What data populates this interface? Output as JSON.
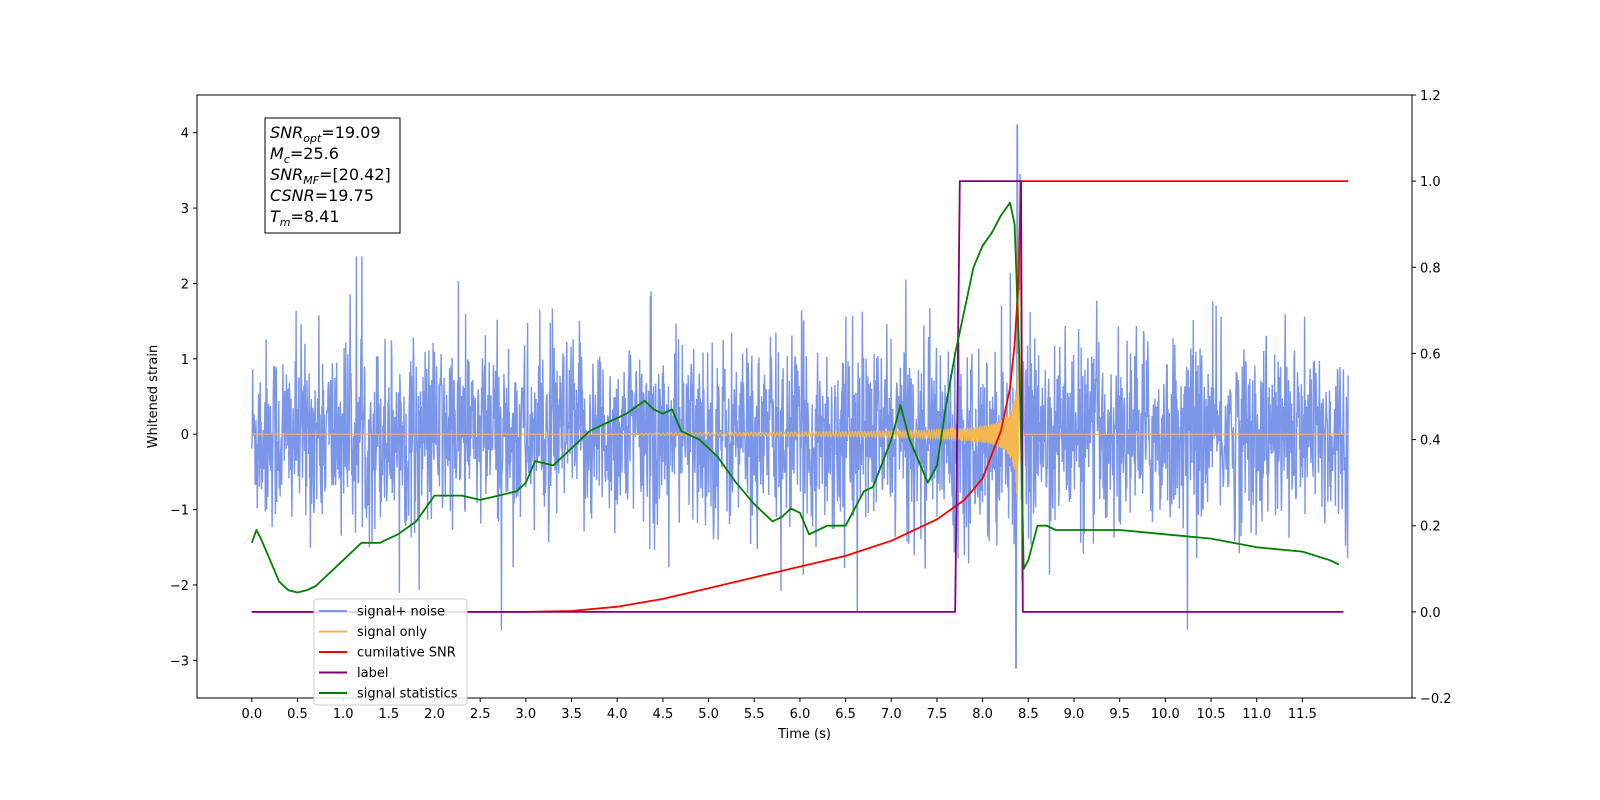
{
  "chart_data": {
    "type": "line",
    "xlabel": "Time (s)",
    "ylabel": "Whitened strain",
    "xlim": [
      -0.6,
      12.7
    ],
    "ylim": [
      -3.5,
      4.5
    ],
    "y2lim": [
      -0.2,
      1.2
    ],
    "x_ticks": [
      0.0,
      0.5,
      1.0,
      1.5,
      2.0,
      2.5,
      3.0,
      3.5,
      4.0,
      4.5,
      5.0,
      5.5,
      6.0,
      6.5,
      7.0,
      7.5,
      8.0,
      8.5,
      9.0,
      9.5,
      10.0,
      10.5,
      11.0,
      11.5
    ],
    "x_tick_labels": [
      "0.0",
      "0.5",
      "1.0",
      "1.5",
      "2.0",
      "2.5",
      "3.0",
      "3.5",
      "4.0",
      "4.5",
      "5.0",
      "5.5",
      "6.0",
      "6.5",
      "7.0",
      "7.5",
      "8.0",
      "8.5",
      "9.0",
      "9.5",
      "10.0",
      "10.5",
      "11.0",
      "11.5"
    ],
    "y_ticks": [
      -3,
      -2,
      -1,
      0,
      1,
      2,
      3,
      4
    ],
    "y_tick_labels": [
      "−3",
      "−2",
      "−1",
      "0",
      "1",
      "2",
      "3",
      "4"
    ],
    "y2_ticks": [
      -0.2,
      0.0,
      0.2,
      0.4,
      0.6,
      0.8,
      1.0,
      1.2
    ],
    "y2_tick_labels": [
      "−0.2",
      "0.0",
      "0.2",
      "0.4",
      "0.6",
      "0.8",
      "1.0",
      "1.2"
    ],
    "legend_position": "lower-left",
    "grid": false,
    "series": [
      {
        "name": "signal+ noise",
        "axis": "left",
        "color": "#7b96e8",
        "style": "dense noise band, amplitude ~1.3 (spikes to ~2.7), plus chirp; peak 4.1 at t=8.38, min -3.1 at t=8.37",
        "x_range": [
          0.0,
          12.0
        ]
      },
      {
        "name": "signal only",
        "axis": "left",
        "color": "#f5b74f",
        "style": "zero until ~3.7 s, growing chirp oscillation, peak about ±3.0 near t=8.38, ends at t=8.42",
        "x_range": [
          0.0,
          12.0
        ]
      },
      {
        "name": "cumilative SNR",
        "axis": "right",
        "color": "#ff0000",
        "x": [
          0.0,
          3.0,
          3.5,
          4.0,
          4.5,
          5.0,
          5.5,
          6.0,
          6.5,
          7.0,
          7.5,
          7.8,
          8.0,
          8.2,
          8.3,
          8.35,
          8.39,
          8.42,
          12.0
        ],
        "y": [
          0.0,
          0.0,
          0.002,
          0.012,
          0.03,
          0.055,
          0.08,
          0.105,
          0.13,
          0.165,
          0.215,
          0.26,
          0.31,
          0.42,
          0.52,
          0.62,
          0.76,
          1.0,
          1.0
        ]
      },
      {
        "name": "label",
        "axis": "right",
        "color": "#800080",
        "x": [
          0.0,
          7.7,
          7.75,
          8.42,
          8.44,
          11.95
        ],
        "y": [
          0.0,
          0.0,
          1.0,
          1.0,
          0.0,
          0.0
        ]
      },
      {
        "name": "signal statistics",
        "axis": "right",
        "color": "#008000",
        "x": [
          0.0,
          0.05,
          0.1,
          0.2,
          0.3,
          0.4,
          0.5,
          0.6,
          0.7,
          0.8,
          0.9,
          1.0,
          1.2,
          1.4,
          1.6,
          1.8,
          2.0,
          2.1,
          2.3,
          2.5,
          2.7,
          2.9,
          3.0,
          3.1,
          3.3,
          3.5,
          3.7,
          3.8,
          4.0,
          4.1,
          4.3,
          4.4,
          4.5,
          4.6,
          4.7,
          4.8,
          4.9,
          5.1,
          5.3,
          5.5,
          5.7,
          5.8,
          5.9,
          6.0,
          6.1,
          6.2,
          6.3,
          6.5,
          6.7,
          6.8,
          7.0,
          7.1,
          7.2,
          7.3,
          7.4,
          7.5,
          7.6,
          7.7,
          7.8,
          7.9,
          8.0,
          8.1,
          8.2,
          8.3,
          8.35,
          8.4,
          8.45,
          8.5,
          8.6,
          8.7,
          8.8,
          9.0,
          9.5,
          10.0,
          10.5,
          11.0,
          11.5,
          11.8,
          11.9
        ],
        "y": [
          0.16,
          0.19,
          0.17,
          0.12,
          0.07,
          0.05,
          0.045,
          0.05,
          0.06,
          0.08,
          0.1,
          0.12,
          0.16,
          0.16,
          0.18,
          0.21,
          0.27,
          0.27,
          0.27,
          0.26,
          0.27,
          0.28,
          0.3,
          0.35,
          0.34,
          0.38,
          0.42,
          0.43,
          0.45,
          0.46,
          0.49,
          0.47,
          0.46,
          0.47,
          0.42,
          0.41,
          0.4,
          0.36,
          0.3,
          0.25,
          0.21,
          0.22,
          0.24,
          0.23,
          0.18,
          0.19,
          0.2,
          0.2,
          0.28,
          0.29,
          0.4,
          0.48,
          0.4,
          0.35,
          0.3,
          0.34,
          0.48,
          0.6,
          0.7,
          0.8,
          0.85,
          0.88,
          0.92,
          0.95,
          0.9,
          0.6,
          0.1,
          0.12,
          0.2,
          0.2,
          0.19,
          0.19,
          0.19,
          0.18,
          0.17,
          0.15,
          0.14,
          0.12,
          0.11
        ]
      }
    ],
    "annotation": {
      "lines": [
        {
          "main": "SNR",
          "sub": "opt",
          "value": "=19.09"
        },
        {
          "main": "M",
          "sub": "c",
          "value": "=25.6"
        },
        {
          "main": "SNR",
          "sub": "MF",
          "value": "=[20.42]"
        },
        {
          "main": "CSNR",
          "sub": "",
          "value": "=19.75"
        },
        {
          "main": "T",
          "sub": "m",
          "value": "=8.41"
        }
      ]
    },
    "legend": [
      {
        "label": "signal+ noise",
        "color": "#7b96e8"
      },
      {
        "label": "signal only",
        "color": "#f5b74f"
      },
      {
        "label": "cumilative SNR",
        "color": "#ff0000"
      },
      {
        "label": "label",
        "color": "#800080"
      },
      {
        "label": "signal statistics",
        "color": "#008000"
      }
    ]
  }
}
